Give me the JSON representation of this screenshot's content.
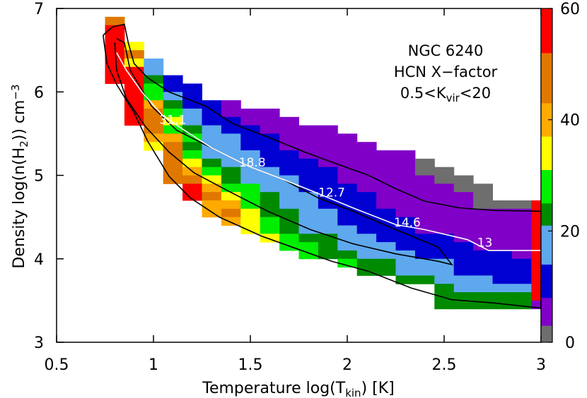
{
  "chart_data": {
    "type": "heatmap",
    "xlim": [
      0.5,
      3
    ],
    "ylim": [
      3,
      7
    ],
    "xticks": [
      0.5,
      1,
      1.5,
      2,
      2.5,
      3
    ],
    "yticks": [
      3,
      4,
      5,
      6,
      7
    ],
    "xlabel": [
      {
        "text": "Temperature log(T"
      },
      {
        "sub": "kin"
      },
      {
        "text": ") [K]"
      }
    ],
    "ylabel": [
      {
        "text": "Density log(n(H"
      },
      {
        "sub": "2"
      },
      {
        "text": ")) cm"
      },
      {
        "sup": "−3"
      }
    ],
    "annotations": [
      [
        {
          "text": "NGC 6240"
        }
      ],
      [
        {
          "text": "HCN X−factor"
        }
      ],
      [
        {
          "text": "0.5<K"
        },
        {
          "sub": "vir"
        },
        {
          "text": "<20"
        }
      ]
    ],
    "cell_size": [
      0.1,
      0.1
    ],
    "colorbar": {
      "clim": [
        0,
        60
      ],
      "ticks": [
        0,
        20,
        40,
        60
      ],
      "levels": [
        0,
        3,
        8,
        14,
        21,
        25,
        31,
        37,
        43,
        52,
        60
      ],
      "colors": [
        "#6e6e6e",
        "#8000c8",
        "#0000d2",
        "#5ea8ee",
        "#008a00",
        "#00ee00",
        "#ffff00",
        "#ffaa00",
        "#e07800",
        "#ff0000"
      ]
    },
    "rows": [
      {
        "y": 6.8,
        "x0": 0.75,
        "values": [
          47
        ]
      },
      {
        "y": 6.7,
        "x0": 0.75,
        "values": [
          56
        ]
      },
      {
        "y": 6.6,
        "x0": 0.75,
        "values": [
          56
        ]
      },
      {
        "y": 6.5,
        "x0": 0.75,
        "values": [
          56,
          33
        ]
      },
      {
        "y": 6.4,
        "x0": 0.75,
        "values": [
          56,
          47
        ]
      },
      {
        "y": 6.3,
        "x0": 0.75,
        "values": [
          56,
          33,
          18
        ]
      },
      {
        "y": 6.2,
        "x0": 0.75,
        "values": [
          56,
          56,
          18
        ]
      },
      {
        "y": 6.1,
        "x0": 0.75,
        "values": [
          56,
          56,
          23,
          11
        ]
      },
      {
        "y": 6.0,
        "x0": 0.85,
        "values": [
          56,
          28,
          11,
          11
        ]
      },
      {
        "y": 5.9,
        "x0": 0.85,
        "values": [
          56,
          28,
          18,
          11
        ]
      },
      {
        "y": 5.8,
        "x0": 0.85,
        "values": [
          56,
          40,
          23,
          11,
          11,
          6
        ]
      },
      {
        "y": 5.7,
        "x0": 0.85,
        "values": [
          56,
          47,
          28,
          18,
          11,
          6,
          6,
          6
        ]
      },
      {
        "y": 5.6,
        "x0": 0.85,
        "values": [
          56,
          47,
          33,
          18,
          11,
          11,
          6,
          6,
          6
        ]
      },
      {
        "y": 5.5,
        "x0": 0.95,
        "values": [
          47,
          28,
          23,
          18,
          11,
          11,
          6,
          6,
          6,
          6
        ]
      },
      {
        "y": 5.4,
        "x0": 0.95,
        "values": [
          40,
          40,
          28,
          18,
          18,
          11,
          11,
          6,
          6,
          6,
          6
        ]
      },
      {
        "y": 5.3,
        "x0": 0.95,
        "values": [
          33,
          47,
          23,
          18,
          18,
          11,
          11,
          6,
          6,
          6,
          6,
          6
        ]
      },
      {
        "y": 5.2,
        "x0": 1.05,
        "values": [
          47,
          28,
          18,
          18,
          18,
          11,
          11,
          6,
          6,
          6,
          6,
          6,
          6
        ]
      },
      {
        "y": 5.1,
        "x0": 1.05,
        "values": [
          47,
          33,
          23,
          18,
          18,
          11,
          11,
          11,
          6,
          6,
          6,
          6,
          6,
          2
        ]
      },
      {
        "y": 5.0,
        "x0": 1.05,
        "values": [
          47,
          40,
          28,
          23,
          18,
          18,
          11,
          11,
          11,
          6,
          6,
          6,
          6,
          2,
          2
        ]
      },
      {
        "y": 4.9,
        "x0": 1.05,
        "values": [
          47,
          47,
          33,
          23,
          18,
          18,
          18,
          11,
          11,
          6,
          6,
          6,
          6,
          6,
          2,
          2
        ]
      },
      {
        "y": 4.8,
        "x0": 1.15,
        "values": [
          56,
          40,
          28,
          28,
          18,
          18,
          11,
          11,
          11,
          6,
          6,
          6,
          6,
          6,
          2,
          2
        ]
      },
      {
        "y": 4.7,
        "x0": 1.15,
        "values": [
          56,
          47,
          33,
          28,
          23,
          18,
          18,
          11,
          11,
          11,
          6,
          6,
          6,
          6,
          6,
          2
        ]
      },
      {
        "y": 4.6,
        "x0": 1.25,
        "values": [
          40,
          40,
          28,
          23,
          18,
          18,
          11,
          11,
          11,
          6,
          6,
          6,
          6,
          6,
          2,
          2,
          2,
          56
        ]
      },
      {
        "y": 4.5,
        "x0": 1.25,
        "values": [
          40,
          47,
          33,
          23,
          23,
          18,
          18,
          11,
          11,
          11,
          6,
          6,
          6,
          6,
          6,
          6,
          6,
          56
        ]
      },
      {
        "y": 4.4,
        "x0": 1.35,
        "values": [
          40,
          33,
          28,
          23,
          18,
          18,
          11,
          11,
          11,
          11,
          6,
          6,
          6,
          6,
          6,
          6,
          56
        ]
      },
      {
        "y": 4.3,
        "x0": 1.45,
        "values": [
          33,
          28,
          23,
          18,
          18,
          18,
          11,
          11,
          11,
          6,
          6,
          6,
          6,
          6,
          6,
          56
        ]
      },
      {
        "y": 4.2,
        "x0": 1.55,
        "values": [
          33,
          28,
          23,
          23,
          18,
          18,
          11,
          11,
          11,
          11,
          6,
          6,
          6,
          6,
          56
        ]
      },
      {
        "y": 4.1,
        "x0": 1.65,
        "values": [
          28,
          28,
          23,
          18,
          18,
          18,
          11,
          11,
          11,
          11,
          6,
          6,
          6,
          56
        ]
      },
      {
        "y": 4.0,
        "x0": 1.75,
        "values": [
          28,
          23,
          23,
          18,
          18,
          18,
          11,
          11,
          11,
          11,
          11,
          6,
          56
        ]
      },
      {
        "y": 3.9,
        "x0": 1.95,
        "values": [
          28,
          23,
          23,
          18,
          18,
          18,
          11,
          11,
          11,
          11,
          56
        ]
      },
      {
        "y": 3.8,
        "x0": 2.05,
        "values": [
          23,
          23,
          18,
          18,
          18,
          11,
          11,
          11,
          11,
          56
        ]
      },
      {
        "y": 3.7,
        "x0": 2.25,
        "values": [
          23,
          23,
          18,
          18,
          18,
          11,
          11,
          56
        ]
      },
      {
        "y": 3.6,
        "x0": 2.45,
        "values": [
          23,
          18,
          18,
          18,
          18,
          56
        ]
      },
      {
        "y": 3.5,
        "x0": 2.45,
        "values": [
          23,
          23,
          23,
          23,
          23,
          56
        ]
      },
      {
        "y": 3.4,
        "x0": 2.45,
        "values": [
          23,
          23,
          23,
          23,
          23,
          6
        ]
      }
    ],
    "contours": [
      {
        "color": "#000000",
        "x": [
          0.74,
          0.79,
          0.85,
          0.87,
          0.9,
          0.97,
          1.08,
          1.27,
          1.41,
          1.6,
          1.78,
          1.92,
          2.11,
          2.25,
          2.4,
          2.58,
          2.76,
          3.0,
          3.0,
          2.76,
          2.54,
          2.33,
          2.11,
          1.92,
          1.74,
          1.56,
          1.34,
          1.19,
          1.08,
          0.97,
          0.9,
          0.81,
          0.76,
          0.74
        ],
        "y": [
          6.68,
          6.78,
          6.81,
          6.59,
          6.34,
          6.17,
          6.0,
          5.83,
          5.62,
          5.45,
          5.28,
          5.16,
          5.0,
          4.84,
          4.69,
          4.61,
          4.58,
          4.57,
          3.41,
          3.47,
          3.51,
          3.65,
          3.85,
          3.97,
          4.12,
          4.27,
          4.5,
          4.73,
          4.99,
          5.41,
          5.75,
          6.09,
          6.34,
          6.68
        ]
      },
      {
        "color": "#000000",
        "x": [
          0.81,
          0.85,
          0.88,
          0.99,
          1.12,
          1.3,
          1.49,
          1.67,
          1.85,
          2.03,
          2.25,
          2.47,
          2.54,
          2.47,
          2.25,
          2.03,
          1.81,
          1.59,
          1.38,
          1.21,
          1.08,
          0.96,
          0.86,
          0.81,
          0.8
        ],
        "y": [
          6.64,
          6.59,
          6.26,
          5.83,
          5.54,
          5.33,
          5.11,
          4.95,
          4.73,
          4.57,
          4.35,
          4.14,
          3.93,
          3.97,
          4.06,
          4.18,
          4.35,
          4.57,
          4.82,
          5.03,
          5.28,
          5.58,
          5.92,
          6.26,
          6.59
        ]
      },
      {
        "color": "#ffffff",
        "x": [
          0.81,
          0.86,
          0.94,
          1.05,
          1.16,
          1.3,
          1.49,
          1.67,
          1.81,
          2.03,
          2.25,
          2.4,
          2.62,
          2.73,
          3.0
        ],
        "y": [
          6.47,
          6.26,
          6.0,
          5.71,
          5.54,
          5.33,
          5.11,
          4.95,
          4.82,
          4.61,
          4.41,
          4.35,
          4.23,
          4.1,
          4.1
        ]
      }
    ],
    "contour_labels": [
      {
        "x": 1.1,
        "y": 5.66,
        "value": 31.1
      },
      {
        "x": 1.51,
        "y": 5.15,
        "value": 18.8
      },
      {
        "x": 1.92,
        "y": 4.79,
        "value": 12.7
      },
      {
        "x": 2.31,
        "y": 4.43,
        "value": 14.6
      },
      {
        "x": 2.71,
        "y": 4.19,
        "value": 13
      }
    ]
  }
}
